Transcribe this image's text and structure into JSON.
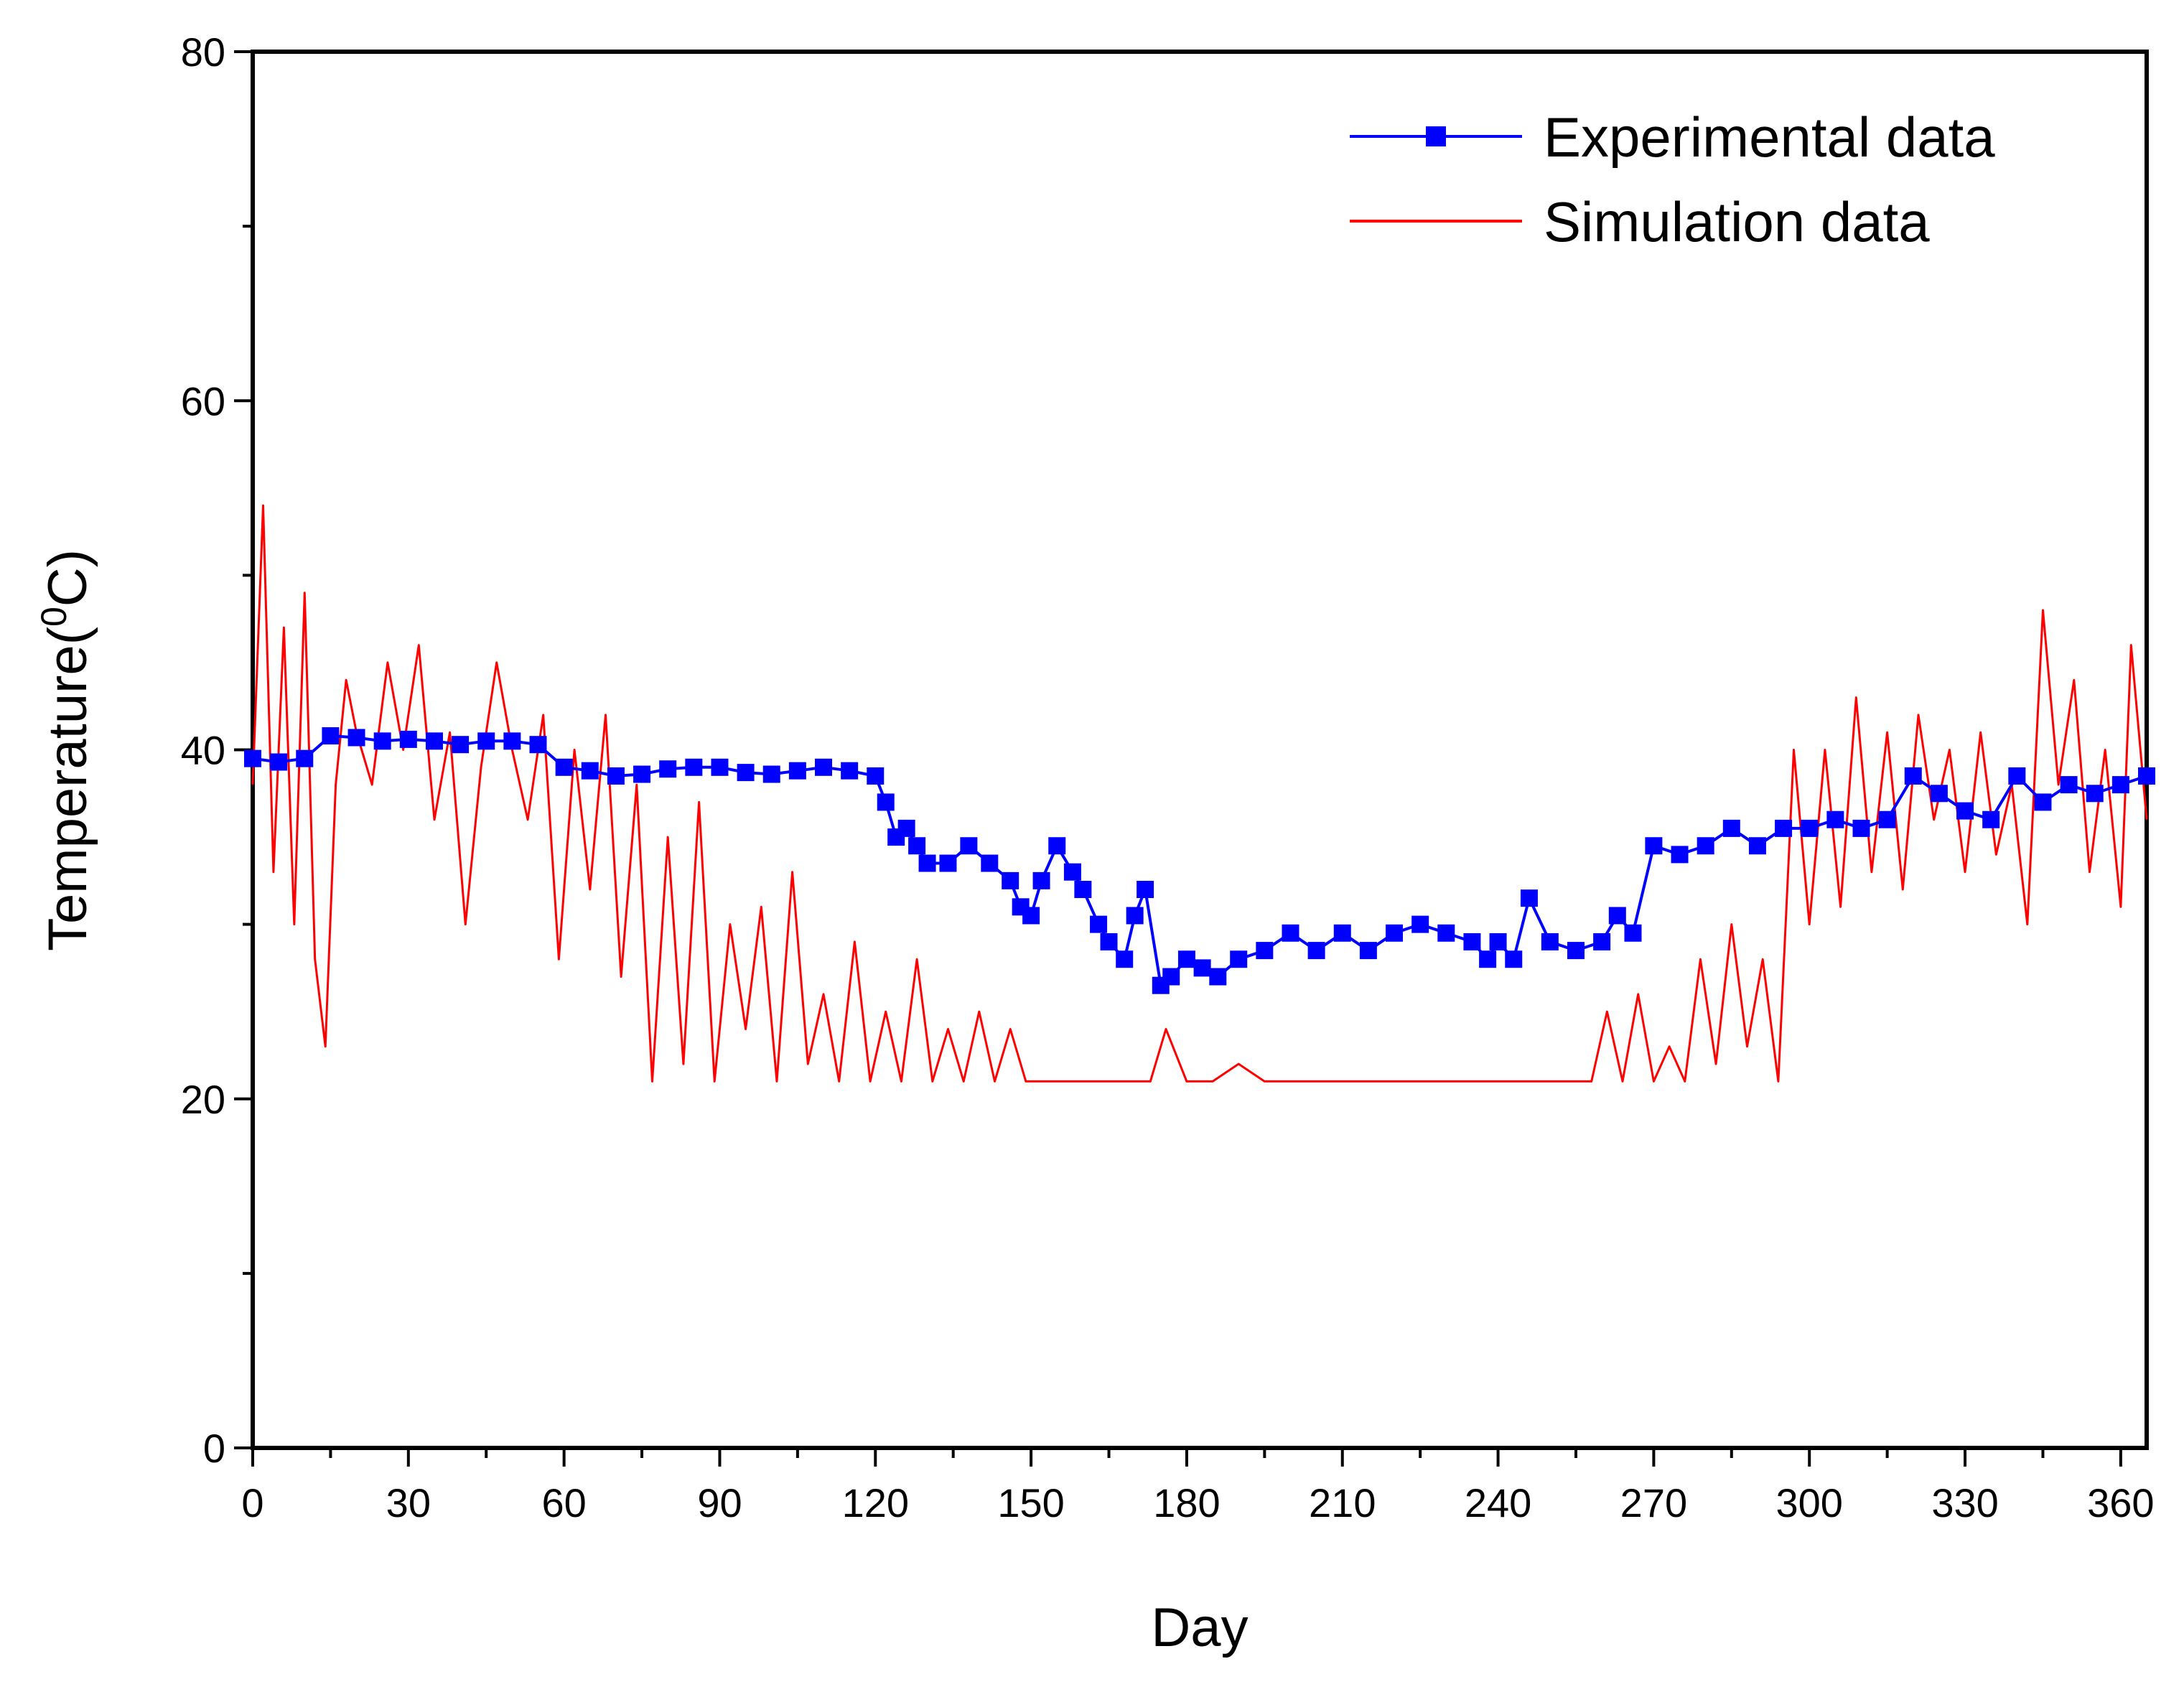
{
  "chart_data": {
    "type": "line",
    "title": "",
    "xlabel": "Day",
    "ylabel_main": "Temperature(",
    "ylabel_sup": "0",
    "ylabel_tail": "C)",
    "xlim": [
      0,
      365
    ],
    "ylim": [
      0,
      80
    ],
    "xticks": [
      0,
      30,
      60,
      90,
      120,
      150,
      180,
      210,
      240,
      270,
      300,
      330,
      360
    ],
    "xtick_labels": [
      "0",
      "30",
      "60",
      "90",
      "120",
      "150",
      "180",
      "210",
      "240",
      "270",
      "300",
      "330",
      "360"
    ],
    "xminor_step": 15,
    "yticks": [
      0,
      20,
      40,
      60,
      80
    ],
    "ytick_labels": [
      "0",
      "20",
      "40",
      "60",
      "80"
    ],
    "yminor_step": 10,
    "grid": false,
    "legend_position": "top-right",
    "series": [
      {
        "name": "Experimental data",
        "style": "line-with-square-markers",
        "color": "#0000ff",
        "x": [
          0,
          5,
          10,
          15,
          20,
          25,
          30,
          35,
          40,
          45,
          50,
          55,
          60,
          65,
          70,
          75,
          80,
          85,
          90,
          95,
          100,
          105,
          110,
          115,
          120,
          122,
          124,
          126,
          128,
          130,
          134,
          138,
          142,
          146,
          148,
          150,
          152,
          155,
          158,
          160,
          163,
          165,
          168,
          170,
          172,
          175,
          177,
          180,
          183,
          186,
          190,
          195,
          200,
          205,
          210,
          215,
          220,
          225,
          230,
          235,
          238,
          240,
          243,
          246,
          250,
          255,
          260,
          263,
          266,
          270,
          275,
          280,
          285,
          290,
          295,
          300,
          305,
          310,
          315,
          320,
          325,
          330,
          335,
          340,
          345,
          350,
          355,
          360,
          365
        ],
        "values": [
          39.5,
          39.3,
          39.5,
          40.8,
          40.7,
          40.5,
          40.6,
          40.5,
          40.3,
          40.5,
          40.5,
          40.3,
          39.0,
          38.8,
          38.5,
          38.6,
          38.9,
          39.0,
          39.0,
          38.7,
          38.6,
          38.8,
          39.0,
          38.8,
          38.5,
          37.0,
          35.0,
          35.5,
          34.5,
          33.5,
          33.5,
          34.5,
          33.5,
          32.5,
          31.0,
          30.5,
          32.5,
          34.5,
          33.0,
          32.0,
          30.0,
          29.0,
          28.0,
          30.5,
          32.0,
          26.5,
          27.0,
          28.0,
          27.5,
          27.0,
          28.0,
          28.5,
          29.5,
          28.5,
          29.5,
          28.5,
          29.5,
          30.0,
          29.5,
          29.0,
          28.0,
          29.0,
          28.0,
          31.5,
          29.0,
          28.5,
          29.0,
          30.5,
          29.5,
          34.5,
          34.0,
          34.5,
          35.5,
          34.5,
          35.5,
          35.5,
          36.0,
          35.5,
          36.0,
          38.5,
          37.5,
          36.5,
          36.0,
          38.5,
          37.0,
          38.0,
          37.5,
          38.0,
          38.5
        ]
      },
      {
        "name": "Simulation data",
        "style": "line",
        "color": "#ff0000",
        "x": [
          0,
          2,
          4,
          6,
          8,
          10,
          12,
          14,
          16,
          18,
          20,
          23,
          26,
          29,
          32,
          35,
          38,
          41,
          44,
          47,
          50,
          53,
          56,
          59,
          62,
          65,
          68,
          71,
          74,
          77,
          80,
          83,
          86,
          89,
          92,
          95,
          98,
          101,
          104,
          107,
          110,
          113,
          116,
          119,
          122,
          125,
          128,
          131,
          134,
          137,
          140,
          143,
          146,
          149,
          152,
          155,
          158,
          161,
          164,
          167,
          170,
          173,
          176,
          180,
          185,
          190,
          195,
          200,
          205,
          210,
          215,
          220,
          225,
          230,
          235,
          240,
          245,
          250,
          255,
          258,
          261,
          264,
          267,
          270,
          273,
          276,
          279,
          282,
          285,
          288,
          291,
          294,
          297,
          300,
          303,
          306,
          309,
          312,
          315,
          318,
          321,
          324,
          327,
          330,
          333,
          336,
          339,
          342,
          345,
          348,
          351,
          354,
          357,
          360,
          362,
          365
        ],
        "values": [
          38,
          54,
          33,
          47,
          30,
          49,
          28,
          23,
          38,
          44,
          41,
          38,
          45,
          40,
          46,
          36,
          41,
          30,
          39,
          45,
          40,
          36,
          42,
          28,
          40,
          32,
          42,
          27,
          38,
          21,
          35,
          22,
          37,
          21,
          30,
          24,
          31,
          21,
          33,
          22,
          26,
          21,
          29,
          21,
          25,
          21,
          28,
          21,
          24,
          21,
          25,
          21,
          24,
          21,
          21,
          21,
          21,
          21,
          21,
          21,
          21,
          21,
          24,
          21,
          21,
          22,
          21,
          21,
          21,
          21,
          21,
          21,
          21,
          21,
          21,
          21,
          21,
          21,
          21,
          21,
          25,
          21,
          26,
          21,
          23,
          21,
          28,
          22,
          30,
          23,
          28,
          21,
          40,
          30,
          40,
          31,
          43,
          33,
          41,
          32,
          42,
          36,
          40,
          33,
          41,
          34,
          38,
          30,
          48,
          38,
          44,
          33,
          40,
          31,
          46,
          36
        ]
      }
    ]
  }
}
